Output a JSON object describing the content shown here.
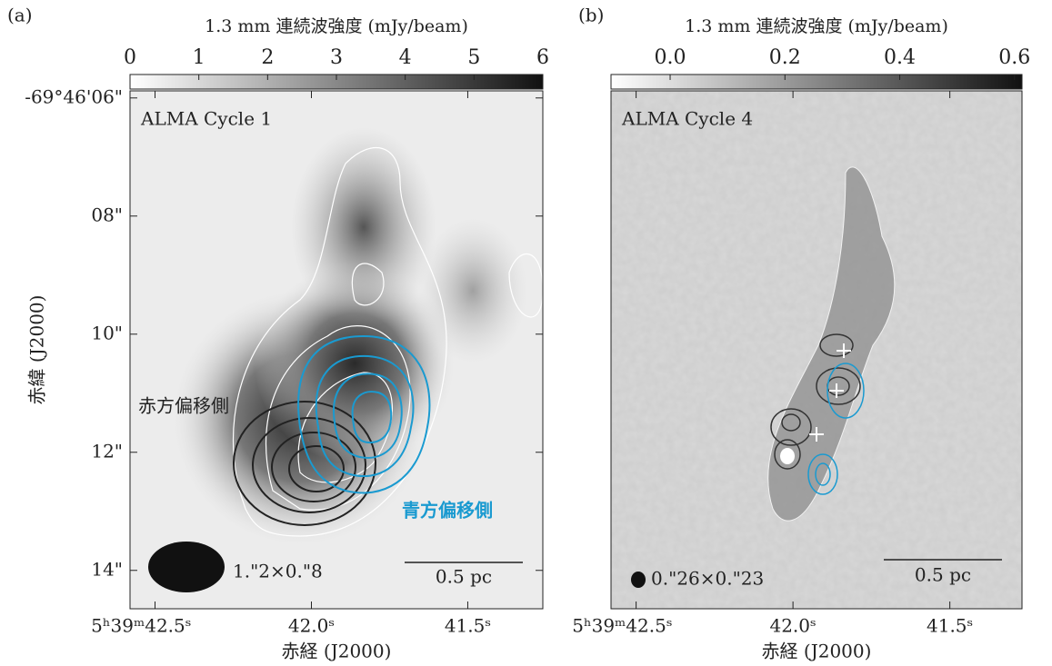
{
  "chart_data": [
    {
      "type": "image",
      "panel_label": "(a)",
      "title": "ALMA Cycle 1",
      "colorbar_label": "1.3 mm 連続波強度 (mJy/beam)",
      "colorbar_lim": [
        0,
        6
      ],
      "colorbar_ticks": [
        0,
        1,
        2,
        3,
        4,
        5,
        6
      ],
      "xlim": [
        42.58,
        41.26
      ],
      "xticks": [
        {
          "value": 42.5,
          "label": "5ʰ39ᵐ42.5ˢ"
        },
        {
          "value": 42.0,
          "label": "42.0ˢ"
        },
        {
          "value": 41.5,
          "label": "41.5ˢ"
        }
      ],
      "ylim": [
        5.88,
        14.65
      ],
      "yticks": [
        {
          "value": 6,
          "label": "-69°46'06\""
        },
        {
          "value": 8,
          "label": "08\""
        },
        {
          "value": 10,
          "label": "10\""
        },
        {
          "value": 12,
          "label": "12\""
        },
        {
          "value": 14,
          "label": "14\""
        }
      ],
      "xlabel": "赤経 (J2000)",
      "ylabel": "赤緯 (J2000)",
      "annotations": [
        "赤方偏移側",
        "青方偏移側"
      ],
      "beam_label": "1.\"2×0.\"8",
      "scale_label": "0.5 pc"
    },
    {
      "type": "image",
      "panel_label": "(b)",
      "title": "ALMA Cycle 4",
      "colorbar_label": "1.3 mm 連続波強度 (mJy/beam)",
      "colorbar_lim": [
        -0.103,
        0.613
      ],
      "colorbar_ticks": [
        {
          "value": 0,
          "label": "0.0"
        },
        0.2,
        0.4,
        0.6
      ],
      "xlim": [
        42.58,
        41.27
      ],
      "xticks": [
        {
          "value": 42.5,
          "label": "5ʰ39ᵐ42.5ˢ"
        },
        {
          "value": 42.0,
          "label": "42.0ˢ"
        },
        {
          "value": 41.5,
          "label": "41.5ˢ"
        }
      ],
      "xlabel": "赤経 (J2000)",
      "beam_label": "0.\"26×0.\"23",
      "scale_label": "0.5 pc"
    }
  ]
}
